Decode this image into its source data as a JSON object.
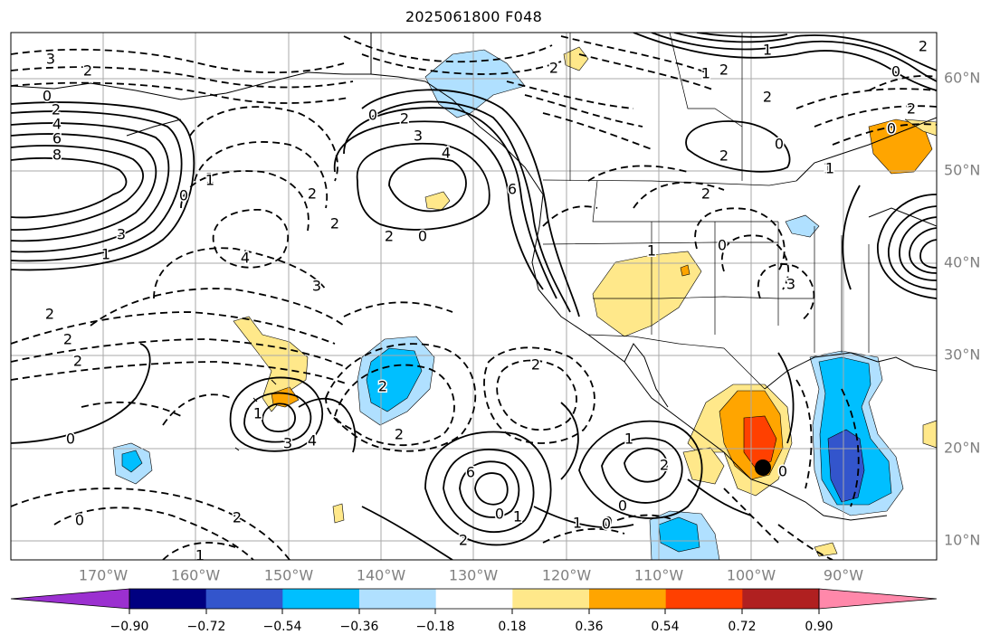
{
  "title": "2025061800 F048",
  "lat_labels": [
    "60°N",
    "50°N",
    "40°N",
    "30°N",
    "20°N",
    "10°N"
  ],
  "lon_labels": [
    "170°W",
    "160°W",
    "150°W",
    "140°W",
    "130°W",
    "120°W",
    "110°W",
    "100°W",
    "90°W"
  ],
  "colorbar": {
    "ticks": [
      "−0.90",
      "−0.72",
      "−0.54",
      "−0.36",
      "−0.18",
      "0.18",
      "0.36",
      "0.54",
      "0.72",
      "0.90"
    ],
    "colors": [
      "#9b30d0",
      "#000080",
      "#3355cc",
      "#00bfff",
      "#b0e0ff",
      "#ffffff",
      "#ffe88a",
      "#ffa500",
      "#ff4000",
      "#b02020",
      "#ff88aa"
    ]
  },
  "contour_labels": {
    "solid": [
      "0",
      "2",
      "4",
      "6",
      "8",
      "3",
      "1",
      "2",
      "3",
      "4",
      "6",
      "0",
      "2",
      "1",
      "2",
      "1",
      "2",
      "0",
      "2",
      "1",
      "0",
      "1",
      "3",
      "4",
      "6",
      "0",
      "2",
      "1",
      "0",
      "1",
      "0",
      "0",
      "2"
    ],
    "dashed": [
      "3",
      "2",
      "1",
      "4",
      "3",
      "2",
      "2",
      "2",
      "1",
      "2",
      "0",
      "2",
      "0",
      "2",
      "1",
      "0",
      "2",
      "1",
      "0",
      "2",
      "2",
      "3",
      "1",
      "0",
      "2",
      "1",
      "2",
      "0",
      "2",
      "2",
      "0"
    ]
  }
}
